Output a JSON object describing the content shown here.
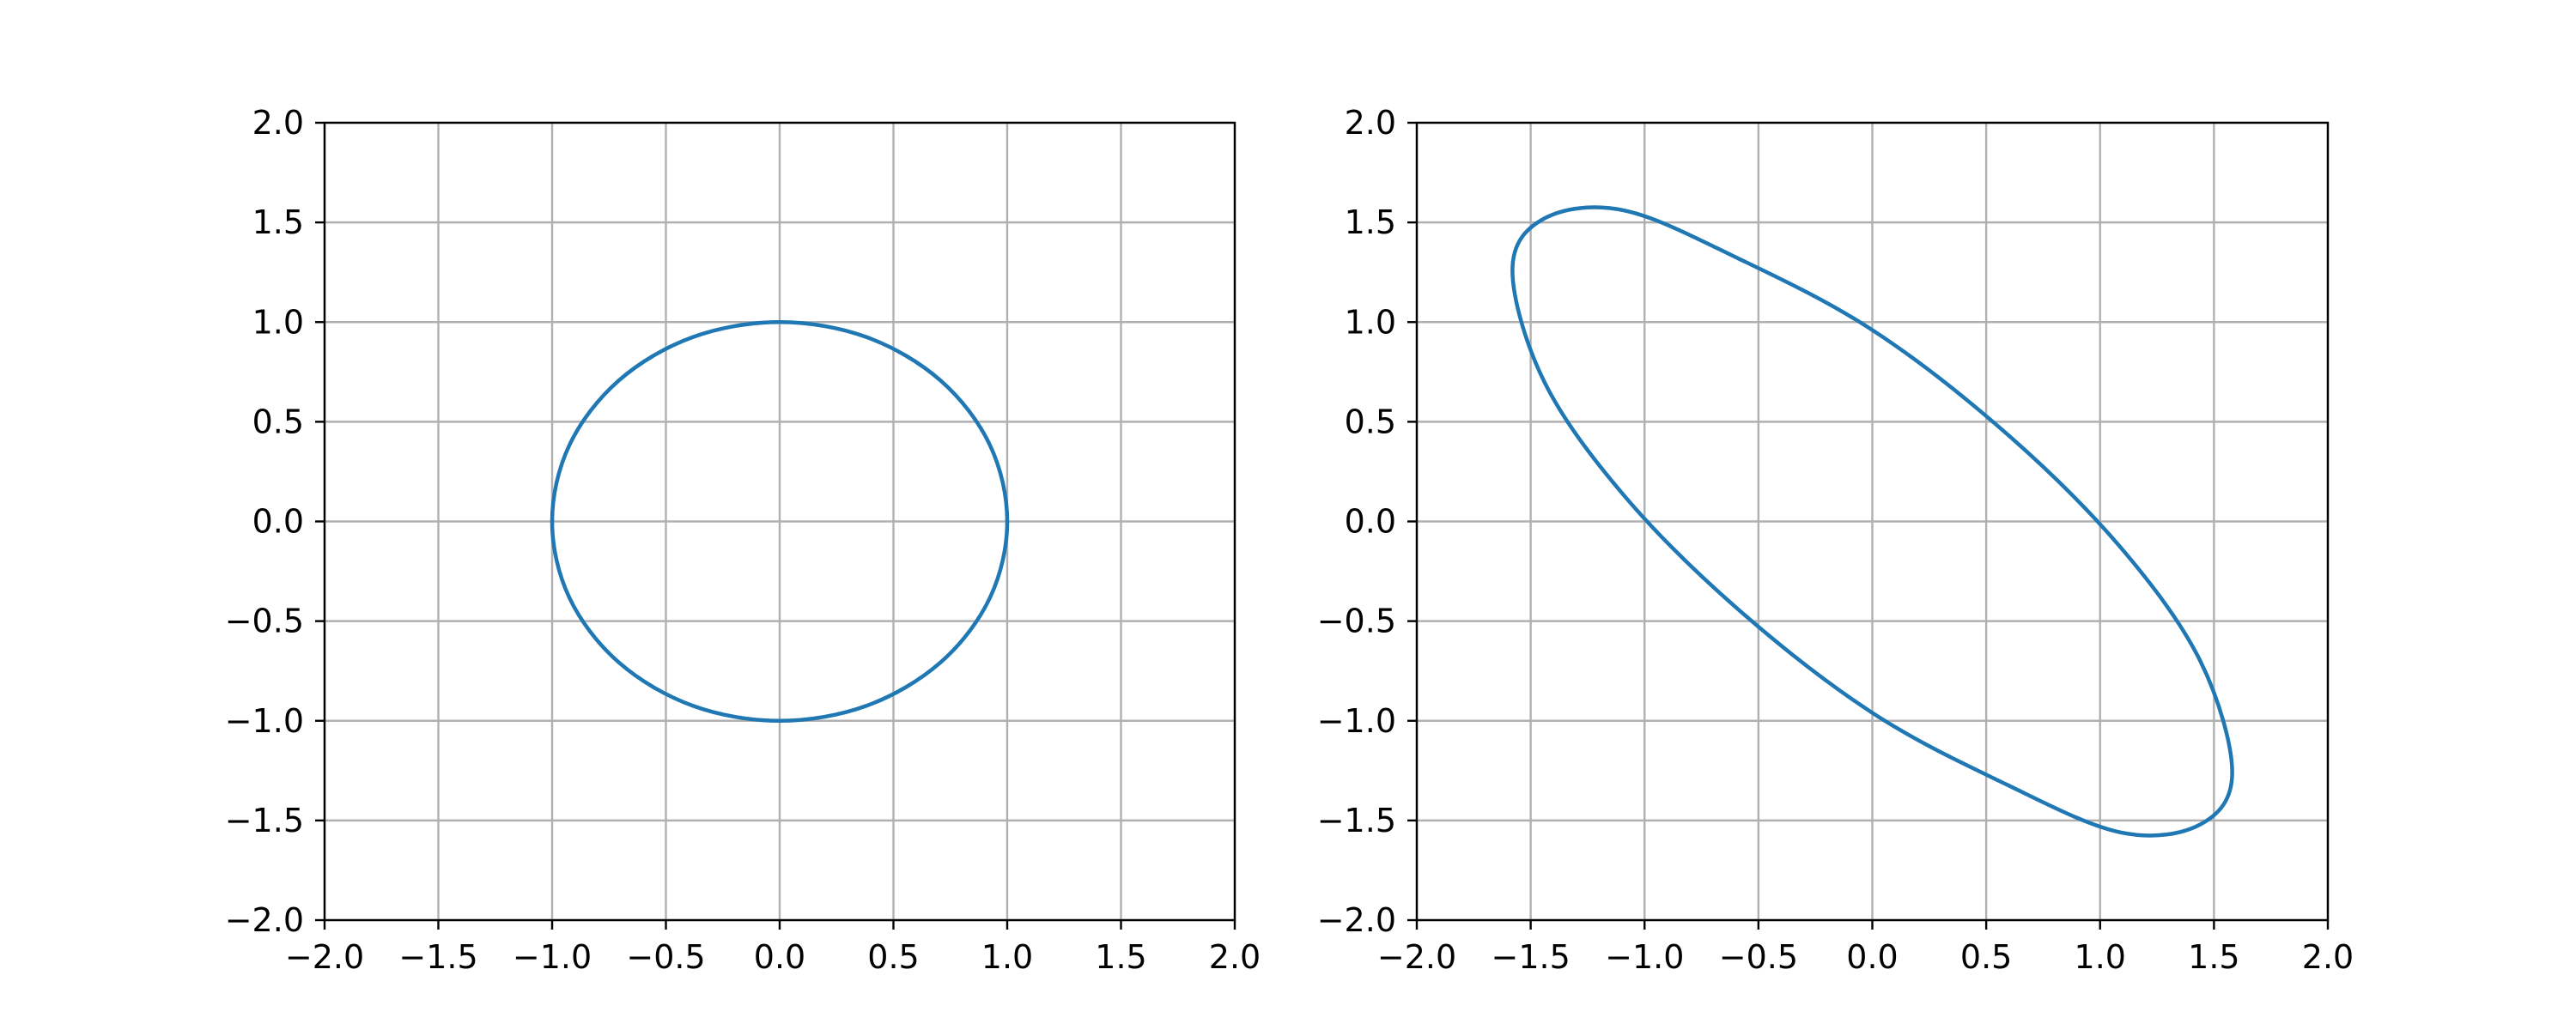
{
  "chart_data": [
    {
      "type": "line",
      "title": "",
      "xlabel": "",
      "ylabel": "",
      "xlim": [
        -2.0,
        2.0
      ],
      "ylim": [
        -2.0,
        2.0
      ],
      "grid": true,
      "x_ticks": [
        "−2.0",
        "−1.5",
        "−1.0",
        "−0.5",
        "0.0",
        "0.5",
        "1.0",
        "1.5",
        "2.0"
      ],
      "y_ticks": [
        "−2.0",
        "−1.5",
        "−1.0",
        "−0.5",
        "0.0",
        "0.5",
        "1.0",
        "1.5",
        "2.0"
      ],
      "series": [
        {
          "color": "#1f77b4",
          "x": [
            1.0,
            0.924,
            0.707,
            0.383,
            0.0,
            -0.383,
            -0.707,
            -0.924,
            -1.0,
            -0.924,
            -0.707,
            -0.383,
            0.0,
            0.383,
            0.707,
            0.924,
            1.0
          ],
          "y": [
            0.0,
            0.383,
            0.707,
            0.924,
            1.0,
            0.924,
            0.707,
            0.383,
            0.0,
            -0.383,
            -0.707,
            -0.924,
            -1.0,
            -0.924,
            -0.707,
            -0.383,
            0.0
          ]
        }
      ]
    },
    {
      "type": "line",
      "title": "",
      "xlabel": "",
      "ylabel": "",
      "xlim": [
        -2.0,
        2.0
      ],
      "ylim": [
        -2.0,
        2.0
      ],
      "grid": true,
      "x_ticks": [
        "−2.0",
        "−1.5",
        "−1.0",
        "−0.5",
        "0.0",
        "0.5",
        "1.0",
        "1.5",
        "2.0"
      ],
      "y_ticks": [
        "−2.0",
        "−1.5",
        "−1.0",
        "−0.5",
        "0.0",
        "0.5",
        "1.0",
        "1.5",
        "2.0"
      ],
      "series": [
        {
          "color": "#1f77b4",
          "x": [
            1.58,
            1.44,
            1.09,
            0.59,
            0.0,
            -0.59,
            -1.09,
            -1.44,
            -1.58,
            -1.44,
            -1.09,
            -0.59,
            0.0,
            0.59,
            1.09,
            1.44,
            1.58
          ],
          "y": [
            -1.26,
            -0.7,
            -0.13,
            0.44,
            0.96,
            1.32,
            1.56,
            1.52,
            1.26,
            0.7,
            0.13,
            -0.44,
            -0.96,
            -1.32,
            -1.56,
            -1.52,
            -1.26
          ]
        }
      ]
    }
  ]
}
